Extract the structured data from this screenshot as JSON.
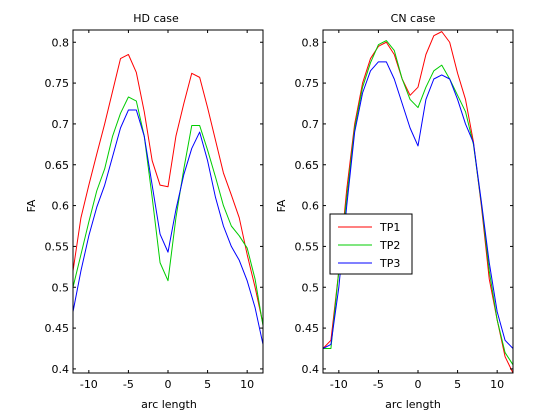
{
  "chart_data": [
    {
      "type": "line",
      "title": "HD case",
      "xlabel": "arc length",
      "ylabel": "FA",
      "xlim": [
        -12,
        12
      ],
      "ylim": [
        0.395,
        0.815
      ],
      "xticks": [
        -10,
        -5,
        0,
        5,
        10
      ],
      "yticks": [
        0.4,
        0.45,
        0.5,
        0.55,
        0.6,
        0.65,
        0.7,
        0.75,
        0.8
      ],
      "ytick_labels": [
        "0.4",
        "0.45",
        "0.5",
        "0.55",
        "0.6",
        "0.65",
        "0.7",
        "0.75",
        "0.8"
      ],
      "x": [
        -12,
        -11,
        -10,
        -9,
        -8,
        -7,
        -6,
        -5,
        -4,
        -3,
        -2,
        -1,
        0,
        1,
        2,
        3,
        4,
        5,
        6,
        7,
        8,
        9,
        10,
        11,
        12
      ],
      "series": [
        {
          "name": "TP1",
          "color": "#ff0000",
          "values": [
            0.52,
            0.585,
            0.625,
            0.663,
            0.7,
            0.74,
            0.78,
            0.785,
            0.763,
            0.715,
            0.655,
            0.625,
            0.623,
            0.685,
            0.725,
            0.762,
            0.757,
            0.72,
            0.68,
            0.64,
            0.613,
            0.585,
            0.54,
            0.5,
            0.455
          ]
        },
        {
          "name": "TP2",
          "color": "#00cc00",
          "values": [
            0.5,
            0.54,
            0.58,
            0.618,
            0.645,
            0.685,
            0.713,
            0.733,
            0.728,
            0.685,
            0.61,
            0.53,
            0.508,
            0.585,
            0.645,
            0.698,
            0.698,
            0.668,
            0.635,
            0.6,
            0.575,
            0.563,
            0.548,
            0.51,
            0.453
          ]
        },
        {
          "name": "TP3",
          "color": "#0000ff",
          "values": [
            0.47,
            0.52,
            0.563,
            0.598,
            0.625,
            0.66,
            0.695,
            0.717,
            0.717,
            0.685,
            0.625,
            0.565,
            0.543,
            0.595,
            0.638,
            0.67,
            0.69,
            0.655,
            0.61,
            0.575,
            0.55,
            0.533,
            0.508,
            0.475,
            0.43
          ]
        }
      ]
    },
    {
      "type": "line",
      "title": "CN case",
      "xlabel": "arc length",
      "ylabel": "FA",
      "xlim": [
        -12,
        12
      ],
      "ylim": [
        0.395,
        0.815
      ],
      "xticks": [
        -10,
        -5,
        0,
        5,
        10
      ],
      "yticks": [
        0.4,
        0.45,
        0.5,
        0.55,
        0.6,
        0.65,
        0.7,
        0.75,
        0.8
      ],
      "ytick_labels": [
        "0.4",
        "0.45",
        "0.5",
        "0.55",
        "0.6",
        "0.65",
        "0.7",
        "0.75",
        "0.8"
      ],
      "x": [
        -12,
        -11,
        -10,
        -9,
        -8,
        -7,
        -6,
        -5,
        -4,
        -3,
        -2,
        -1,
        0,
        1,
        2,
        3,
        4,
        5,
        6,
        7,
        8,
        9,
        10,
        11,
        12
      ],
      "legend": {
        "position": "lower-left",
        "entries": [
          "TP1",
          "TP2",
          "TP3"
        ]
      },
      "series": [
        {
          "name": "TP1",
          "color": "#ff0000",
          "values": [
            0.425,
            0.435,
            0.52,
            0.62,
            0.7,
            0.75,
            0.78,
            0.795,
            0.8,
            0.785,
            0.755,
            0.735,
            0.745,
            0.785,
            0.808,
            0.813,
            0.8,
            0.762,
            0.73,
            0.678,
            0.6,
            0.51,
            0.46,
            0.415,
            0.395
          ]
        },
        {
          "name": "TP2",
          "color": "#00cc00",
          "values": [
            0.425,
            0.425,
            0.52,
            0.61,
            0.695,
            0.745,
            0.775,
            0.797,
            0.802,
            0.79,
            0.755,
            0.73,
            0.72,
            0.745,
            0.765,
            0.772,
            0.755,
            0.735,
            0.715,
            0.675,
            0.603,
            0.52,
            0.46,
            0.42,
            0.405
          ]
        },
        {
          "name": "TP3",
          "color": "#0000ff",
          "values": [
            0.425,
            0.43,
            0.5,
            0.6,
            0.69,
            0.738,
            0.765,
            0.776,
            0.776,
            0.755,
            0.725,
            0.695,
            0.673,
            0.73,
            0.755,
            0.76,
            0.755,
            0.73,
            0.7,
            0.677,
            0.605,
            0.53,
            0.47,
            0.435,
            0.425
          ]
        }
      ]
    }
  ]
}
